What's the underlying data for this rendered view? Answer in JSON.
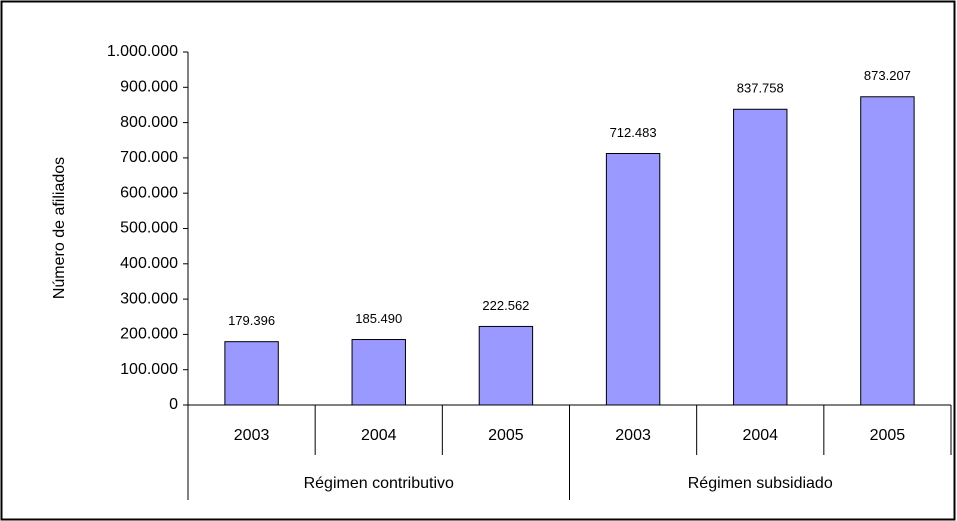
{
  "chart_data": {
    "type": "bar",
    "ylabel": "Número de afiliados",
    "color": "#9999ff",
    "groups": [
      {
        "name": "Régimen contributivo",
        "categories": [
          "2003",
          "2004",
          "2005"
        ],
        "values": [
          179396,
          185490,
          222562
        ],
        "value_labels": [
          "179.396",
          "185.490",
          "222.562"
        ]
      },
      {
        "name": "Régimen subsidiado",
        "categories": [
          "2003",
          "2004",
          "2005"
        ],
        "values": [
          712483,
          837758,
          873207
        ],
        "value_labels": [
          "712.483",
          "837.758",
          "873.207"
        ]
      }
    ],
    "ylim": [
      0,
      1000000
    ],
    "yticks": [
      0,
      {
        "value": 100000,
        "label": "100.000"
      },
      {
        "value": 200000,
        "label": "200.000"
      },
      {
        "value": 300000,
        "label": "300.000"
      },
      {
        "value": 400000,
        "label": "400.000"
      },
      {
        "value": 500000,
        "label": "500.000"
      },
      {
        "value": 600000,
        "label": "600.000"
      },
      {
        "value": 700000,
        "label": "700.000"
      },
      {
        "value": 800000,
        "label": "800.000"
      },
      {
        "value": 900000,
        "label": "900.000"
      },
      {
        "value": 1000000,
        "label": "1.000.000"
      }
    ]
  }
}
